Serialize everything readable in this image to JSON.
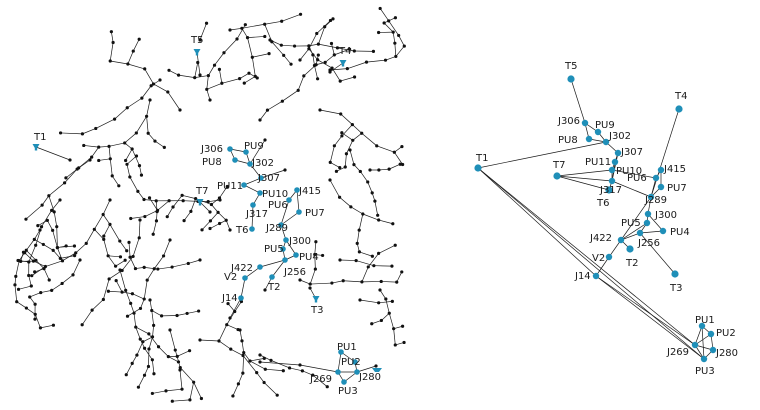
{
  "colors": {
    "highlight": "#1f8fb8",
    "edge": "#1a1a1a",
    "junction": "#111111",
    "label": "#1a1a1a"
  },
  "full_network": {
    "tanks": [
      "T1",
      "T3",
      "T4",
      "T5",
      "T7"
    ],
    "highlighted_labels": [
      "T1",
      "T2",
      "T3",
      "T4",
      "T5",
      "T6",
      "T7",
      "J306",
      "J302",
      "J307",
      "J317",
      "J289",
      "J300",
      "J256",
      "J415",
      "J422",
      "J14",
      "J269",
      "J280",
      "V2",
      "PU1",
      "PU2",
      "PU3",
      "PU4",
      "PU5",
      "PU6",
      "PU7",
      "PU8",
      "PU9",
      "PU10",
      "PU11"
    ]
  },
  "reduced_network": {
    "nodes": [
      "T1",
      "T2",
      "T3",
      "T4",
      "T5",
      "T6",
      "T7",
      "J306",
      "J302",
      "J307",
      "J317",
      "J289",
      "J300",
      "J256",
      "J415",
      "J422",
      "J14",
      "J269",
      "J280",
      "V2",
      "PU1",
      "PU2",
      "PU3",
      "PU4",
      "PU5",
      "PU6",
      "PU7",
      "PU8",
      "PU9",
      "PU10",
      "PU11"
    ]
  }
}
